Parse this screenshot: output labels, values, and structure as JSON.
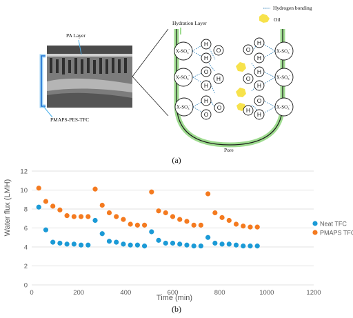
{
  "schematic": {
    "labels": {
      "pa_layer": "PA Layer",
      "membrane": "PMAPS-PES-TFC",
      "hydration_layer": "Hydration Layer",
      "hydrogen_bonding": "Hydrogen bonding",
      "oil": "Oil",
      "pore": "Pore",
      "x_so3": "X-SO",
      "water_o": "O",
      "water_h": "H"
    },
    "caption": "(a)"
  },
  "chart_data": {
    "type": "scatter",
    "x_tick_labels": [
      "0",
      "200",
      "400",
      "600",
      "800",
      "1000",
      "1200"
    ],
    "y_tick_labels": [
      "0",
      "2",
      "4",
      "6",
      "8",
      "10",
      "12"
    ],
    "xlabel": "Time (min)",
    "ylabel": "Water flux (LMH)",
    "xlim": [
      0,
      1200
    ],
    "ylim": [
      0,
      12
    ],
    "grid": "horizontal",
    "legend_position": "right",
    "series": [
      {
        "name": "Neat TFC",
        "color": "#1b9ad6",
        "x": [
          30,
          60,
          90,
          120,
          150,
          180,
          210,
          240,
          270,
          300,
          330,
          360,
          390,
          420,
          450,
          480,
          510,
          540,
          570,
          600,
          630,
          660,
          690,
          720,
          750,
          780,
          810,
          840,
          870,
          900,
          930,
          960
        ],
        "y": [
          8.2,
          5.8,
          4.5,
          4.4,
          4.3,
          4.3,
          4.2,
          4.2,
          6.8,
          5.4,
          4.6,
          4.5,
          4.3,
          4.2,
          4.2,
          4.1,
          5.6,
          4.7,
          4.4,
          4.4,
          4.3,
          4.2,
          4.1,
          4.1,
          5.0,
          4.4,
          4.3,
          4.3,
          4.2,
          4.1,
          4.1,
          4.1
        ]
      },
      {
        "name": "PMAPS TFC",
        "color": "#f47a1f",
        "x": [
          30,
          60,
          90,
          120,
          150,
          180,
          210,
          240,
          270,
          300,
          330,
          360,
          390,
          420,
          450,
          480,
          510,
          540,
          570,
          600,
          630,
          660,
          690,
          720,
          750,
          780,
          810,
          840,
          870,
          900,
          930,
          960
        ],
        "y": [
          10.2,
          8.8,
          8.3,
          7.9,
          7.3,
          7.2,
          7.2,
          7.2,
          10.1,
          8.4,
          7.6,
          7.2,
          6.9,
          6.4,
          6.3,
          6.3,
          9.8,
          7.8,
          7.6,
          7.2,
          6.9,
          6.7,
          6.3,
          6.3,
          9.6,
          7.6,
          7.1,
          6.8,
          6.4,
          6.2,
          6.1,
          6.1
        ]
      }
    ]
  },
  "caption_b": "(b)"
}
